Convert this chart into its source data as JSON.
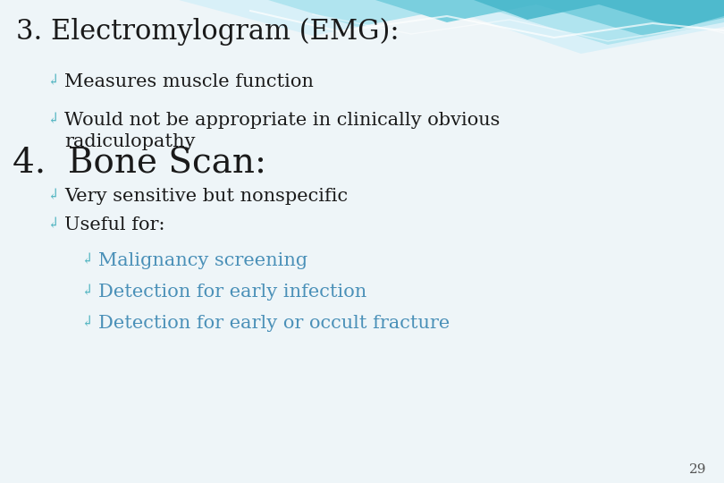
{
  "title": "3. Electromylogram (EMG):",
  "title_fontsize": 22,
  "title_color": "#1a1a1a",
  "bg_color": "#f0f4f8",
  "dark_text": "#1a1a1a",
  "teal_bullet": "#5ab8c4",
  "steel_blue": "#4a90b8",
  "heading2": "4.  Bone Scan:",
  "heading2_fontsize": 28,
  "page_number": "29",
  "items1": [
    {
      "text": "Measures muscle function",
      "color": "#1a1a1a"
    },
    {
      "text": "Would not be appropriate in clinically obvious\nradiculopathy",
      "color": "#1a1a1a"
    }
  ],
  "items2": [
    {
      "level": 1,
      "text": "Very sensitive but nonspecific",
      "color": "#1a1a1a"
    },
    {
      "level": 1,
      "text": "Useful for:",
      "color": "#1a1a1a"
    },
    {
      "level": 2,
      "text": "Malignancy screening",
      "color": "#4a90b8"
    },
    {
      "level": 2,
      "text": "Detection for early infection",
      "color": "#4a90b8"
    },
    {
      "level": 2,
      "text": "Detection for early or occult fracture",
      "color": "#4a90b8"
    }
  ],
  "wave_dark": "#4ab8cc",
  "wave_mid": "#7acfde",
  "wave_light": "#b0e4ef",
  "wave_pale": "#d8f0f8"
}
